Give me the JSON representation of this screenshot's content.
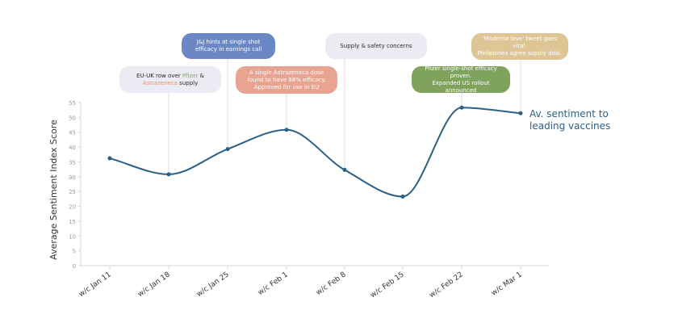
{
  "chart_data": {
    "type": "line",
    "title": "",
    "xlabel": "",
    "ylabel": "Average Sentiment Index Score",
    "ylim": [
      0,
      55
    ],
    "yticks": [
      0,
      5,
      10,
      15,
      20,
      25,
      30,
      35,
      40,
      45,
      50,
      55
    ],
    "grid": false,
    "categories": [
      "w/c Jan 11",
      "w/c Jan 18",
      "w/c Jan 25",
      "w/c Feb 1",
      "w/c Feb 8",
      "w/c Feb 15",
      "w/c Feb 22",
      "w/c Mar 1"
    ],
    "series": [
      {
        "name": "Av. sentiment to leading vaccines",
        "values": [
          36.2,
          30.8,
          39.3,
          45.8,
          32.3,
          23.3,
          53.3,
          51.4
        ],
        "color": "#2b5f85"
      }
    ],
    "series_label_lines": [
      "Av. sentiment to",
      "leading vaccines"
    ],
    "annotations": [
      {
        "category_index": 1,
        "color": "#ebebf3",
        "text_color": "#2b2b2b",
        "lines": [
          [
            {
              "t": "EU-UK row over "
            },
            {
              "t": "Pfizer",
              "c": "#7fa855"
            },
            {
              "t": " &"
            }
          ],
          [
            {
              "t": "Astrazeneca",
              "c": "#e6927b"
            },
            {
              "t": " supply"
            }
          ]
        ]
      },
      {
        "category_index": 2,
        "color": "#6b88c4",
        "text_color": "#ffffff",
        "lines": [
          [
            {
              "t": "J&J hints at single shot"
            }
          ],
          [
            {
              "t": "efficacy in earnings call"
            }
          ]
        ]
      },
      {
        "category_index": 3,
        "color": "#e8a391",
        "text_color": "#ffffff",
        "lines": [
          [
            {
              "t": "A single Astrazeneca dose"
            }
          ],
          [
            {
              "t": "found to have 68% efficacy."
            }
          ],
          [
            {
              "t": "Approved for use in EU"
            }
          ]
        ]
      },
      {
        "category_index": 4,
        "color": "#ebebf3",
        "text_color": "#2b2b2b",
        "lines": [
          [
            {
              "t": "Supply & safety concerns"
            }
          ]
        ]
      },
      {
        "category_index": 6,
        "color": "#7fa25c",
        "text_color": "#ffffff",
        "lines": [
          [
            {
              "t": "Pfizer single-shot efficacy proven."
            }
          ],
          [
            {
              "t": "Expanded US rollout announced"
            }
          ]
        ]
      },
      {
        "category_index": 7,
        "color": "#ddc596",
        "text_color": "#ffffff",
        "lines": [
          [
            {
              "t": "'Moderna love' tweet goes viral."
            }
          ],
          [
            {
              "t": "Philippines agree supply deal."
            }
          ]
        ]
      }
    ]
  }
}
